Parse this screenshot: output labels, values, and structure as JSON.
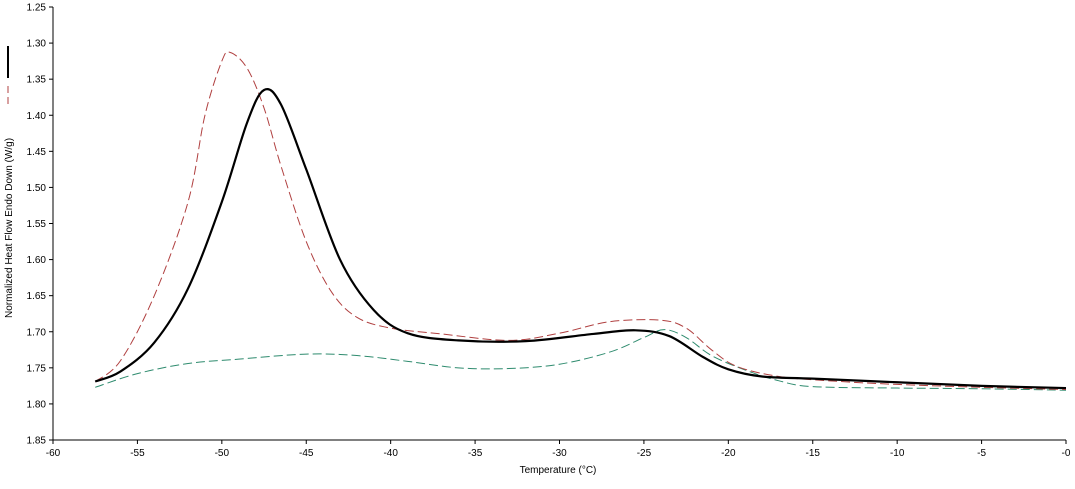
{
  "chart_data": {
    "type": "line",
    "title": "",
    "xlabel": "Temperature (°C)",
    "ylabel": "Normalized Heat Flow Endo Down (W/g)",
    "xlim": [
      -60,
      0
    ],
    "ylim": [
      1.85,
      1.25
    ],
    "y_axis_inverted": true,
    "grid": false,
    "legend": "left-edge line-style key",
    "x_ticks": [
      -60,
      -55,
      -50,
      -45,
      -40,
      -35,
      -30,
      -25,
      -20,
      -15,
      -10,
      -5,
      0
    ],
    "x_tick_labels": [
      "-60",
      "-55",
      "-50",
      "-45",
      "-40",
      "-35",
      "-30",
      "-25",
      "-20",
      "-15",
      "-10",
      "-5",
      "-0"
    ],
    "y_ticks": [
      1.25,
      1.3,
      1.35,
      1.4,
      1.45,
      1.5,
      1.55,
      1.6,
      1.65,
      1.7,
      1.75,
      1.8,
      1.85
    ],
    "y_tick_labels": [
      "1.25",
      "1.30",
      "1.35",
      "1.40",
      "1.45",
      "1.50",
      "1.55",
      "1.60",
      "1.65",
      "1.70",
      "1.75",
      "1.80",
      "1.85"
    ],
    "series": [
      {
        "color": "#000000",
        "style": "solid",
        "points": [
          [
            -57.5,
            1.769
          ],
          [
            -56,
            1.755
          ],
          [
            -54,
            1.715
          ],
          [
            -52,
            1.64
          ],
          [
            -50,
            1.52
          ],
          [
            -48.5,
            1.41
          ],
          [
            -47.5,
            1.365
          ],
          [
            -46.5,
            1.385
          ],
          [
            -45,
            1.475
          ],
          [
            -43,
            1.6
          ],
          [
            -41,
            1.67
          ],
          [
            -39,
            1.702
          ],
          [
            -36,
            1.712
          ],
          [
            -32,
            1.713
          ],
          [
            -28,
            1.703
          ],
          [
            -25.5,
            1.698
          ],
          [
            -23.5,
            1.706
          ],
          [
            -21.5,
            1.735
          ],
          [
            -20,
            1.752
          ],
          [
            -18,
            1.762
          ],
          [
            -15,
            1.765
          ],
          [
            -10,
            1.77
          ],
          [
            -5,
            1.775
          ],
          [
            0,
            1.778
          ]
        ]
      },
      {
        "color": "#b04040",
        "style": "dashed",
        "points": [
          [
            -57.5,
            1.769
          ],
          [
            -56,
            1.74
          ],
          [
            -54,
            1.65
          ],
          [
            -52,
            1.52
          ],
          [
            -51,
            1.4
          ],
          [
            -50,
            1.325
          ],
          [
            -49.5,
            1.313
          ],
          [
            -48.5,
            1.335
          ],
          [
            -47.5,
            1.39
          ],
          [
            -46.5,
            1.47
          ],
          [
            -45,
            1.575
          ],
          [
            -43.5,
            1.645
          ],
          [
            -42,
            1.68
          ],
          [
            -40,
            1.695
          ],
          [
            -37,
            1.703
          ],
          [
            -33,
            1.712
          ],
          [
            -30,
            1.702
          ],
          [
            -27,
            1.686
          ],
          [
            -24,
            1.684
          ],
          [
            -22.5,
            1.695
          ],
          [
            -21,
            1.725
          ],
          [
            -19.5,
            1.748
          ],
          [
            -17,
            1.762
          ],
          [
            -14,
            1.768
          ],
          [
            -10,
            1.773
          ],
          [
            -5,
            1.777
          ],
          [
            0,
            1.78
          ]
        ]
      },
      {
        "color": "#2e8b6e",
        "style": "dashed",
        "points": [
          [
            -57.5,
            1.777
          ],
          [
            -55,
            1.758
          ],
          [
            -52,
            1.744
          ],
          [
            -49,
            1.738
          ],
          [
            -45,
            1.731
          ],
          [
            -42,
            1.733
          ],
          [
            -39,
            1.741
          ],
          [
            -36,
            1.75
          ],
          [
            -33,
            1.751
          ],
          [
            -30,
            1.745
          ],
          [
            -27,
            1.728
          ],
          [
            -25,
            1.708
          ],
          [
            -23.8,
            1.697
          ],
          [
            -22.5,
            1.708
          ],
          [
            -21,
            1.733
          ],
          [
            -19,
            1.753
          ],
          [
            -17,
            1.768
          ],
          [
            -15,
            1.776
          ],
          [
            -10,
            1.778
          ],
          [
            -5,
            1.779
          ],
          [
            0,
            1.781
          ]
        ]
      }
    ]
  }
}
